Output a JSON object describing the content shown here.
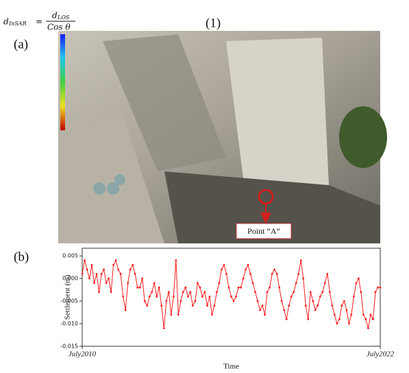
{
  "equation": {
    "lhs": "d",
    "lhs_sub": "InSAR",
    "sign": "=",
    "numerator": "d",
    "numerator_sub": "LOS",
    "denominator": "Cos θ",
    "number": "(1)"
  },
  "panel_a": {
    "label": "(a)",
    "annotation": "Point “A”"
  },
  "panel_b": {
    "label": "(b)"
  },
  "chart_data": {
    "type": "line",
    "y_label": "Settlement (m)",
    "x_label": "Time",
    "xlim": [
      2010.5,
      2022.5
    ],
    "xticks": [
      {
        "value": 2010.5,
        "label": "July2010"
      },
      {
        "value": 2022.5,
        "label": "July2022"
      }
    ],
    "ylim": [
      -0.015,
      0.0067
    ],
    "yticks": [
      0.005,
      {
        "value": 0,
        "label": "0.000"
      },
      -0.005,
      {
        "value": -0.01,
        "label": "-0.010"
      },
      -0.015
    ],
    "series": [
      {
        "color": "#ff1a1a",
        "values": [
          0.001,
          0.004,
          0.002,
          0.0,
          0.003,
          -0.001,
          0.001,
          -0.003,
          0.001,
          0.002,
          -0.001,
          0.0,
          -0.003,
          0.003,
          0.004,
          0.002,
          0.001,
          -0.004,
          -0.007,
          -0.001,
          0.002,
          0.003,
          0.001,
          -0.002,
          -0.002,
          0.0,
          -0.005,
          -0.006,
          -0.004,
          -0.003,
          -0.001,
          -0.004,
          -0.002,
          -0.006,
          -0.011,
          -0.005,
          -0.003,
          -0.008,
          -0.004,
          0.004,
          -0.008,
          -0.005,
          -0.003,
          -0.002,
          -0.004,
          -0.003,
          -0.006,
          -0.005,
          -0.001,
          -0.002,
          -0.004,
          -0.003,
          -0.006,
          -0.004,
          -0.008,
          -0.006,
          -0.003,
          -0.001,
          0.002,
          0.003,
          0.001,
          -0.002,
          -0.004,
          -0.005,
          -0.004,
          -0.002,
          -0.002,
          0.0,
          0.002,
          0.003,
          0.001,
          -0.001,
          -0.003,
          -0.005,
          -0.007,
          -0.006,
          -0.008,
          -0.003,
          -0.002,
          0.001,
          0.002,
          0.001,
          -0.002,
          -0.005,
          -0.007,
          -0.009,
          -0.006,
          -0.004,
          -0.003,
          -0.001,
          0.001,
          0.004,
          0.0,
          -0.006,
          -0.009,
          -0.003,
          -0.005,
          -0.007,
          -0.006,
          -0.004,
          -0.003,
          -0.001,
          0.001,
          -0.003,
          -0.006,
          -0.008,
          -0.01,
          -0.009,
          -0.006,
          -0.005,
          -0.007,
          -0.01,
          -0.008,
          -0.004,
          -0.001,
          0.0,
          -0.003,
          -0.008,
          -0.009,
          -0.011,
          -0.008,
          -0.009,
          -0.003,
          -0.002,
          -0.002
        ]
      }
    ]
  }
}
